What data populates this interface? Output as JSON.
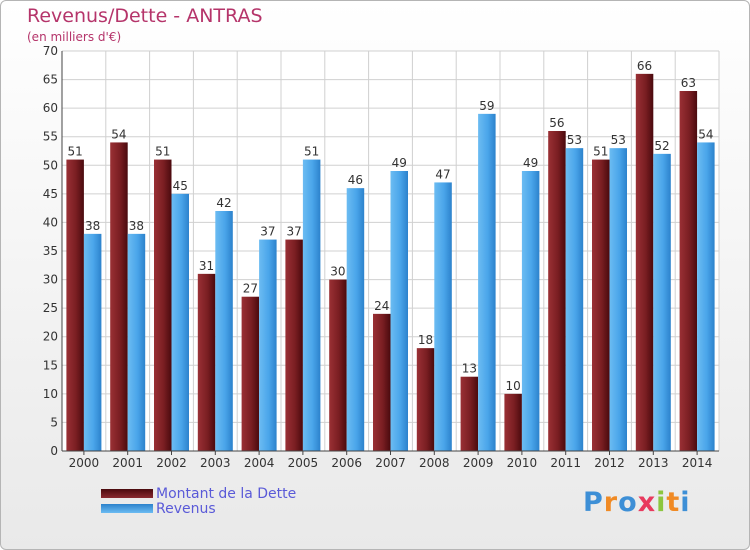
{
  "title": "Revenus/Dette - ANTRAS",
  "subtitle": "(en milliers d'€)",
  "logo": {
    "text": "Proxiti",
    "letters": [
      "P",
      "r",
      "o",
      "x",
      "i",
      "t",
      "i"
    ],
    "colors": [
      "#3d8fd6",
      "#f08a24",
      "#3d8fd6",
      "#e83a5e",
      "#8cc63f",
      "#f08a24",
      "#3d8fd6"
    ]
  },
  "colors": {
    "dette": "#7a1e22",
    "revenus": "#3a9be3",
    "title": "#b5346a",
    "legend_text": "#5a5ad8"
  },
  "chart_data": {
    "type": "bar",
    "title": "Revenus/Dette - ANTRAS",
    "subtitle": "(en milliers d'€)",
    "categories": [
      "2000",
      "2001",
      "2002",
      "2003",
      "2004",
      "2005",
      "2006",
      "2007",
      "2008",
      "2009",
      "2010",
      "2011",
      "2012",
      "2013",
      "2014"
    ],
    "series": [
      {
        "name": "Montant de la Dette",
        "values": [
          51,
          54,
          51,
          31,
          27,
          37,
          30,
          24,
          18,
          13,
          10,
          56,
          51,
          66,
          63
        ]
      },
      {
        "name": "Revenus",
        "values": [
          38,
          38,
          45,
          42,
          37,
          51,
          46,
          49,
          47,
          59,
          49,
          53,
          53,
          52,
          54
        ]
      }
    ],
    "yticks": [
      0,
      5,
      10,
      15,
      20,
      25,
      30,
      35,
      40,
      45,
      50,
      55,
      60,
      65,
      70
    ],
    "ylim": [
      0,
      70
    ],
    "grid": true,
    "legend_position": "bottom-left"
  }
}
